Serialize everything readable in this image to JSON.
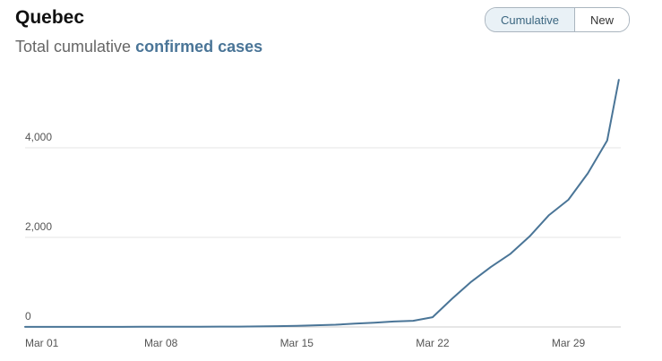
{
  "header": {
    "title": "Quebec",
    "subtitle_prefix": "Total cumulative",
    "subtitle_highlight": "confirmed cases"
  },
  "toggle": {
    "cumulative_label": "Cumulative",
    "new_label": "New",
    "selected": "Cumulative"
  },
  "colors": {
    "line": "#4a7597",
    "grid": "#e6e6e6",
    "axis": "#cccccc"
  },
  "chart_data": {
    "type": "line",
    "title": "Total cumulative confirmed cases",
    "xlabel": "",
    "ylabel": "",
    "grid": true,
    "ylim": [
      0,
      5500
    ],
    "y_ticks": [
      {
        "value": 0,
        "label": "0"
      },
      {
        "value": 2000,
        "label": "2,000"
      },
      {
        "value": 4000,
        "label": "4,000"
      }
    ],
    "x_ticks": [
      {
        "day": 1,
        "label": "Mar 01"
      },
      {
        "day": 8,
        "label": "Mar 08"
      },
      {
        "day": 15,
        "label": "Mar 15"
      },
      {
        "day": 22,
        "label": "Mar 22"
      },
      {
        "day": 29,
        "label": "Mar 29"
      }
    ],
    "xlim": [
      1,
      31.7
    ],
    "series": [
      {
        "name": "Quebec",
        "x": [
          1,
          2,
          3,
          4,
          5,
          6,
          7,
          8,
          9,
          10,
          11,
          12,
          13,
          14,
          15,
          16,
          17,
          18,
          19,
          20,
          21,
          22,
          23,
          24,
          25,
          26,
          27,
          28,
          29,
          30,
          31,
          31.6
        ],
        "values": [
          1,
          1,
          1,
          1,
          2,
          3,
          4,
          4,
          4,
          5,
          7,
          9,
          13,
          17,
          24,
          39,
          50,
          74,
          94,
          121,
          139,
          219,
          628,
          1013,
          1339,
          1629,
          2021,
          2498,
          2840,
          3430,
          4162,
          5518
        ]
      }
    ]
  }
}
